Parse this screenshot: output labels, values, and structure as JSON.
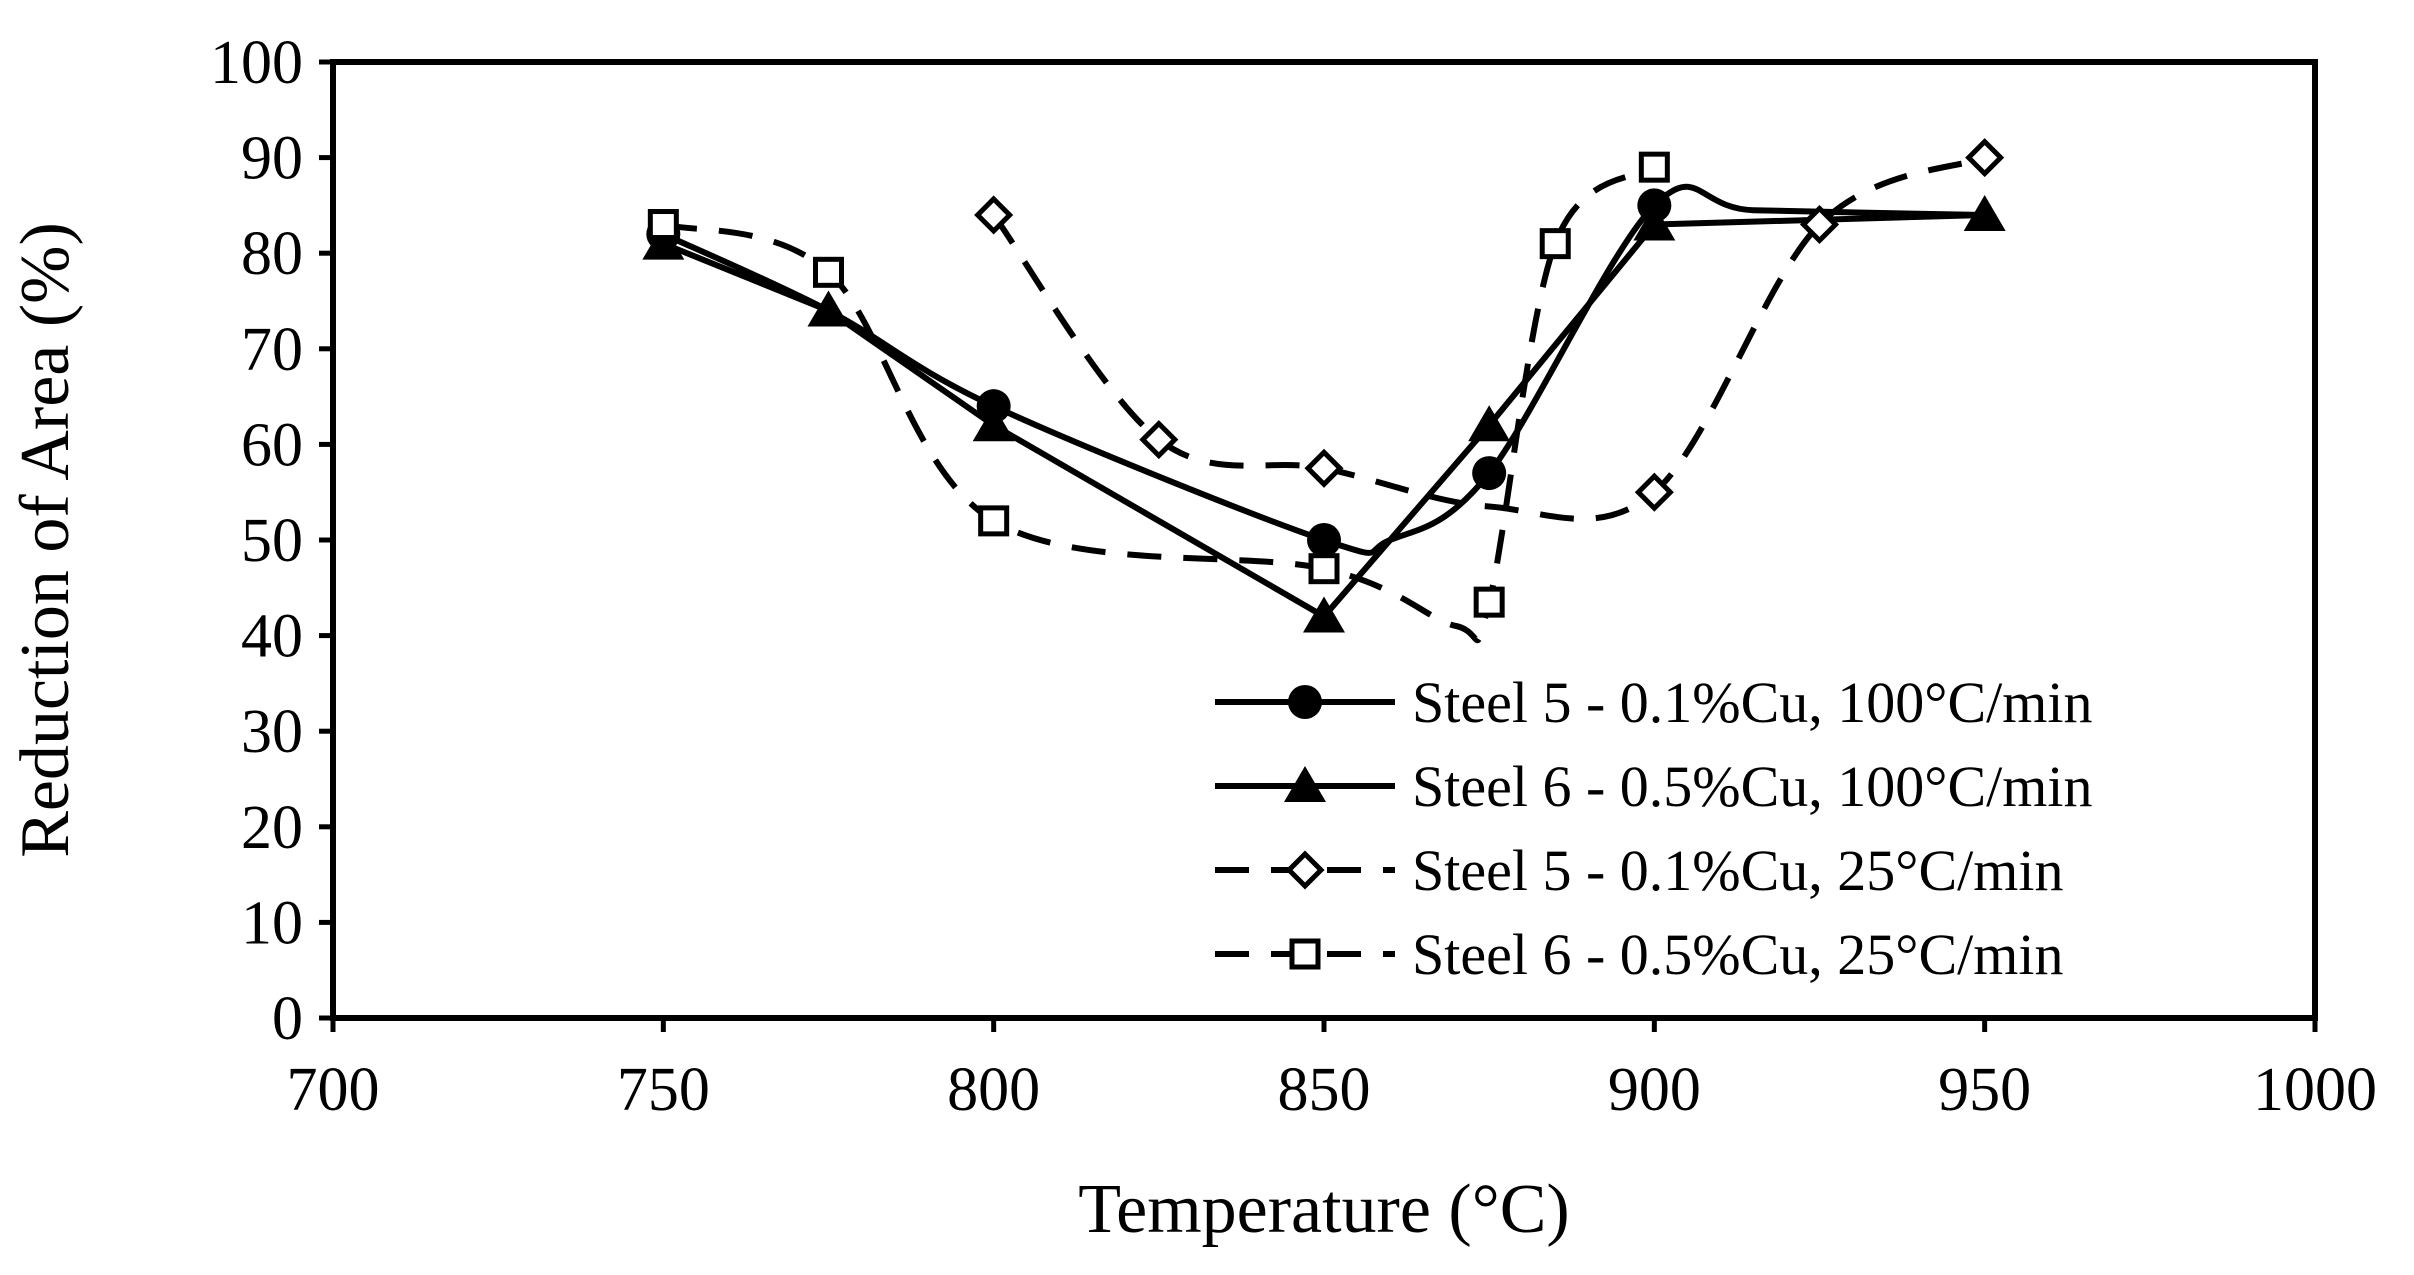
{
  "chart_data": {
    "type": "line",
    "title": "",
    "xlabel": "Temperature (°C)",
    "ylabel": "Reduction of Area (%)",
    "xlim": [
      700,
      1000
    ],
    "ylim": [
      0,
      100
    ],
    "xticks": [
      "700",
      "750",
      "800",
      "850",
      "900",
      "950",
      "1000"
    ],
    "yticks": [
      "0",
      "10",
      "20",
      "30",
      "40",
      "50",
      "60",
      "70",
      "80",
      "90",
      "100"
    ],
    "grid": false,
    "legend_position": "bottom-right",
    "series": [
      {
        "name": "Steel 5 - 0.1%Cu, 100°C/min",
        "line": "solid",
        "marker": "circle-filled",
        "smooth": [
          [
            750,
            82
          ],
          [
            775,
            74
          ],
          [
            800,
            64
          ],
          [
            850,
            50
          ],
          [
            860,
            50
          ],
          [
            875,
            57
          ],
          [
            900,
            85
          ],
          [
            915,
            84.5
          ],
          [
            950,
            84
          ]
        ],
        "x": [
          750,
          800,
          850,
          875,
          900
        ],
        "values": [
          82,
          64,
          50,
          57,
          85
        ]
      },
      {
        "name": "Steel 6 - 0.5%Cu, 100°C/min",
        "line": "solid",
        "marker": "triangle-filled",
        "x": [
          750,
          775,
          800,
          850,
          875,
          900,
          950
        ],
        "values": [
          81,
          74,
          62,
          42,
          62,
          83,
          84
        ]
      },
      {
        "name": "Steel 5 - 0.1%Cu, 25°C/min",
        "line": "dashed",
        "marker": "diamond-open",
        "smooth": [
          [
            800,
            84
          ],
          [
            825,
            60.5
          ],
          [
            850,
            57.5
          ],
          [
            875,
            53.5
          ],
          [
            900,
            55
          ],
          [
            925,
            83
          ],
          [
            950,
            90
          ]
        ],
        "x": [
          800,
          825,
          850,
          900,
          925,
          950
        ],
        "values": [
          84,
          60.5,
          57.5,
          55,
          83,
          90
        ]
      },
      {
        "name": "Steel 6 - 0.5%Cu, 25°C/min",
        "line": "dashed",
        "marker": "square-open",
        "smooth": [
          [
            750,
            83
          ],
          [
            775,
            78
          ],
          [
            800,
            52
          ],
          [
            850,
            47
          ],
          [
            870,
            41
          ],
          [
            875,
            43.5
          ],
          [
            885,
            81
          ],
          [
            900,
            89
          ]
        ],
        "x": [
          750,
          775,
          800,
          850,
          875,
          885,
          900
        ],
        "values": [
          83,
          78,
          52,
          47,
          43.5,
          81,
          89
        ]
      }
    ]
  }
}
